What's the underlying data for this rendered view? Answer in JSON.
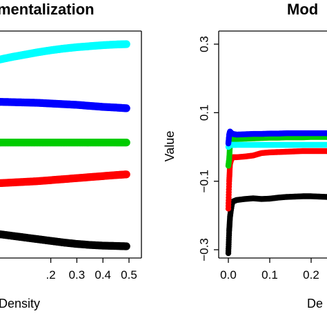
{
  "chart_data": [
    {
      "type": "scatter",
      "title": "Compartmentalization",
      "title_visible": "mentalization",
      "xlabel": "Density",
      "xlabel_visible": "Density",
      "ylabel": "",
      "xlim": [
        0,
        0.5
      ],
      "x_ticks": [
        0.2,
        0.3,
        0.4,
        0.5
      ],
      "x_tick_labels": [
        ".2",
        "0.3",
        "0.4",
        "0.5"
      ],
      "grid": false,
      "legend": "none",
      "series": [
        {
          "color": "#00ffff",
          "x": [
            0.0,
            0.05,
            0.1,
            0.15,
            0.2,
            0.25,
            0.3,
            0.35,
            0.4,
            0.45,
            0.49
          ],
          "y": [
            0.254,
            0.262,
            0.269,
            0.276,
            0.282,
            0.287,
            0.291,
            0.294,
            0.297,
            0.299,
            0.3
          ]
        },
        {
          "color": "#0000ff",
          "x": [
            0.0,
            0.05,
            0.1,
            0.15,
            0.2,
            0.25,
            0.3,
            0.35,
            0.4,
            0.45,
            0.49
          ],
          "y": [
            0.13,
            0.129,
            0.128,
            0.127,
            0.125,
            0.123,
            0.121,
            0.118,
            0.115,
            0.113,
            0.111
          ]
        },
        {
          "color": "#00cc00",
          "x": [
            0.0,
            0.05,
            0.1,
            0.15,
            0.2,
            0.25,
            0.3,
            0.35,
            0.4,
            0.45,
            0.49
          ],
          "y": [
            0.01,
            0.01,
            0.01,
            0.01,
            0.01,
            0.01,
            0.01,
            0.01,
            0.01,
            0.01,
            0.01
          ]
        },
        {
          "color": "#ff0000",
          "x": [
            0.0,
            0.05,
            0.1,
            0.15,
            0.2,
            0.25,
            0.3,
            0.35,
            0.4,
            0.45,
            0.49
          ],
          "y": [
            -0.11,
            -0.108,
            -0.106,
            -0.104,
            -0.101,
            -0.098,
            -0.095,
            -0.092,
            -0.089,
            -0.086,
            -0.084
          ]
        },
        {
          "color": "#000000",
          "x": [
            0.0,
            0.05,
            0.1,
            0.15,
            0.2,
            0.25,
            0.3,
            0.35,
            0.4,
            0.45,
            0.49
          ],
          "y": [
            -0.26,
            -0.265,
            -0.27,
            -0.275,
            -0.28,
            -0.285,
            -0.289,
            -0.292,
            -0.294,
            -0.295,
            -0.296
          ]
        }
      ]
    },
    {
      "type": "scatter",
      "title": "Modularity",
      "title_visible": "Mod",
      "xlabel": "Density",
      "xlabel_visible": "De",
      "ylabel": "Value",
      "xlim": [
        0,
        0.25
      ],
      "ylim": [
        -0.32,
        0.32
      ],
      "x_ticks": [
        0.0,
        0.1,
        0.2
      ],
      "x_tick_labels": [
        "0.0",
        "0.1",
        "0.2"
      ],
      "y_ticks": [
        0.3,
        0.1,
        -0.1,
        -0.3
      ],
      "y_tick_labels": [
        "0.3",
        "0.1",
        "-0.1",
        "-0.3"
      ],
      "grid": false,
      "legend": "none",
      "series": [
        {
          "color": "#000000",
          "x": [
            0.0,
            0.002,
            0.004,
            0.006,
            0.008,
            0.01,
            0.02,
            0.04,
            0.06,
            0.08,
            0.1,
            0.12,
            0.14,
            0.16,
            0.18,
            0.2,
            0.22,
            0.24,
            0.26
          ],
          "y": [
            -0.31,
            -0.245,
            -0.205,
            -0.185,
            -0.17,
            -0.16,
            -0.155,
            -0.152,
            -0.15,
            -0.152,
            -0.151,
            -0.148,
            -0.146,
            -0.145,
            -0.144,
            -0.144,
            -0.145,
            -0.146,
            -0.145
          ]
        },
        {
          "color": "#ff0000",
          "x": [
            0.0,
            0.002,
            0.004,
            0.006,
            0.008,
            0.01,
            0.02,
            0.04,
            0.06,
            0.08,
            0.1,
            0.12,
            0.14,
            0.16,
            0.18,
            0.2,
            0.22,
            0.24,
            0.26
          ],
          "y": [
            -0.18,
            -0.1,
            -0.05,
            -0.04,
            -0.035,
            -0.03,
            -0.03,
            -0.028,
            -0.025,
            -0.018,
            -0.016,
            -0.015,
            -0.014,
            -0.013,
            -0.012,
            -0.012,
            -0.012,
            -0.012,
            -0.012
          ]
        },
        {
          "color": "#00cc00",
          "x": [
            0.0,
            0.002,
            0.004,
            0.006,
            0.008,
            0.01,
            0.02,
            0.04,
            0.06,
            0.08,
            0.1,
            0.12,
            0.14,
            0.16,
            0.18,
            0.2,
            0.22,
            0.24,
            0.26
          ],
          "y": [
            -0.055,
            -0.035,
            0.005,
            0.015,
            0.02,
            0.022,
            0.023,
            0.024,
            0.025,
            0.026,
            0.027,
            0.027,
            0.028,
            0.028,
            0.028,
            0.029,
            0.029,
            0.029,
            0.029
          ]
        },
        {
          "color": "#00ffff",
          "x": [
            0.0,
            0.002,
            0.004,
            0.006,
            0.008,
            0.01,
            0.02,
            0.04,
            0.06,
            0.08,
            0.1,
            0.12,
            0.14,
            0.16,
            0.18,
            0.2,
            0.22,
            0.24,
            0.26
          ],
          "y": [
            0.0,
            0.003,
            0.005,
            0.006,
            0.006,
            0.006,
            0.006,
            0.006,
            0.006,
            0.006,
            0.006,
            0.006,
            0.006,
            0.006,
            0.006,
            0.006,
            0.006,
            0.006,
            0.006
          ]
        },
        {
          "color": "#0000ff",
          "x": [
            0.0,
            0.002,
            0.004,
            0.006,
            0.008,
            0.01,
            0.02,
            0.04,
            0.06,
            0.08,
            0.1,
            0.12,
            0.14,
            0.16,
            0.18,
            0.2,
            0.22,
            0.24,
            0.26
          ],
          "y": [
            0.01,
            0.035,
            0.045,
            0.042,
            0.04,
            0.038,
            0.036,
            0.037,
            0.038,
            0.038,
            0.039,
            0.039,
            0.04,
            0.04,
            0.04,
            0.04,
            0.04,
            0.04,
            0.04
          ]
        }
      ]
    }
  ]
}
